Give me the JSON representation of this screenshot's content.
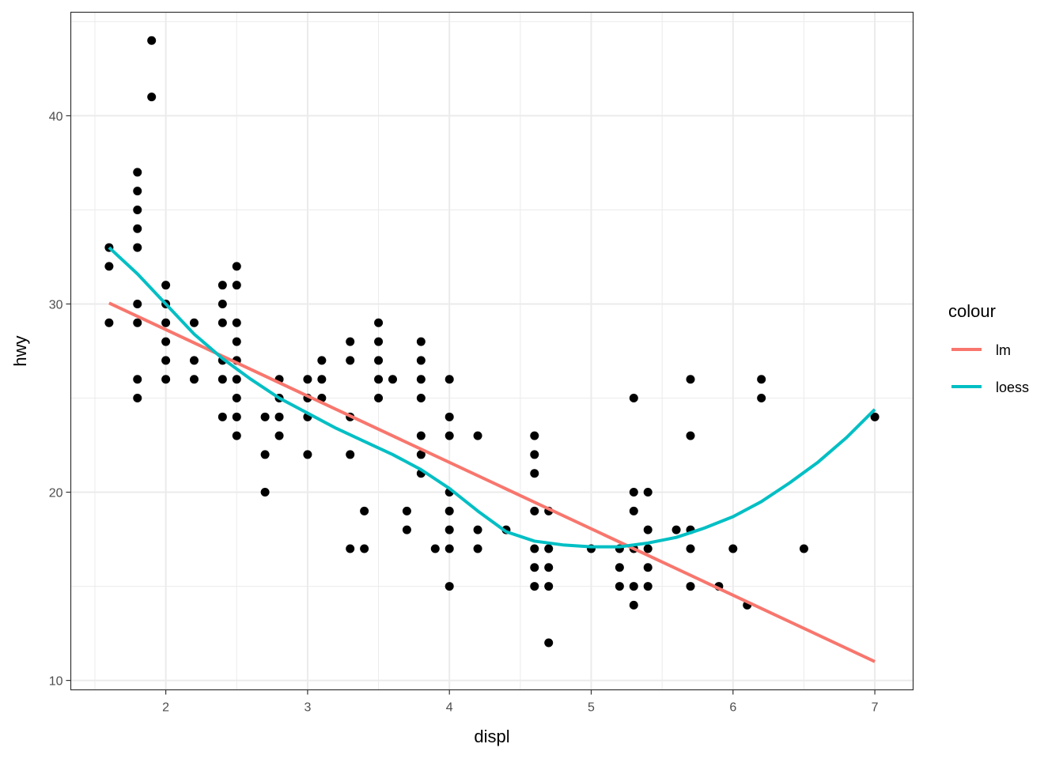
{
  "chart_data": {
    "type": "scatter",
    "xlabel": "displ",
    "ylabel": "hwy",
    "xlim": [
      1.33,
      7.27
    ],
    "ylim": [
      9.5,
      45.5
    ],
    "x_ticks": [
      2,
      3,
      4,
      5,
      6,
      7
    ],
    "y_ticks": [
      10,
      20,
      30,
      40
    ],
    "x_tick_labels": [
      "2",
      "3",
      "4",
      "5",
      "6",
      "7"
    ],
    "y_tick_labels": [
      "10",
      "20",
      "30",
      "40"
    ],
    "grid": true,
    "legend": {
      "title": "colour",
      "placement": "right"
    },
    "points": [
      [
        1.6,
        33
      ],
      [
        1.6,
        32
      ],
      [
        1.6,
        29
      ],
      [
        1.8,
        37
      ],
      [
        1.8,
        36
      ],
      [
        1.8,
        35
      ],
      [
        1.8,
        34
      ],
      [
        1.8,
        33
      ],
      [
        1.8,
        30
      ],
      [
        1.8,
        29
      ],
      [
        1.8,
        26
      ],
      [
        1.8,
        25
      ],
      [
        1.9,
        44
      ],
      [
        1.9,
        41
      ],
      [
        2.0,
        31
      ],
      [
        2.0,
        30
      ],
      [
        2.0,
        29
      ],
      [
        2.0,
        28
      ],
      [
        2.0,
        27
      ],
      [
        2.0,
        26
      ],
      [
        2.2,
        29
      ],
      [
        2.2,
        27
      ],
      [
        2.2,
        26
      ],
      [
        2.4,
        31
      ],
      [
        2.4,
        30
      ],
      [
        2.4,
        29
      ],
      [
        2.4,
        27
      ],
      [
        2.4,
        26
      ],
      [
        2.4,
        24
      ],
      [
        2.5,
        32
      ],
      [
        2.5,
        31
      ],
      [
        2.5,
        29
      ],
      [
        2.5,
        28
      ],
      [
        2.5,
        27
      ],
      [
        2.5,
        26
      ],
      [
        2.5,
        25
      ],
      [
        2.5,
        24
      ],
      [
        2.5,
        23
      ],
      [
        2.7,
        24
      ],
      [
        2.7,
        22
      ],
      [
        2.7,
        20
      ],
      [
        2.8,
        26
      ],
      [
        2.8,
        25
      ],
      [
        2.8,
        24
      ],
      [
        2.8,
        23
      ],
      [
        3.0,
        26
      ],
      [
        3.0,
        25
      ],
      [
        3.0,
        24
      ],
      [
        3.0,
        22
      ],
      [
        3.1,
        27
      ],
      [
        3.1,
        26
      ],
      [
        3.1,
        25
      ],
      [
        3.3,
        28
      ],
      [
        3.3,
        27
      ],
      [
        3.3,
        24
      ],
      [
        3.3,
        22
      ],
      [
        3.3,
        17
      ],
      [
        3.4,
        19
      ],
      [
        3.4,
        17
      ],
      [
        3.5,
        29
      ],
      [
        3.5,
        28
      ],
      [
        3.5,
        27
      ],
      [
        3.5,
        26
      ],
      [
        3.5,
        25
      ],
      [
        3.6,
        26
      ],
      [
        3.7,
        19
      ],
      [
        3.7,
        18
      ],
      [
        3.8,
        28
      ],
      [
        3.8,
        27
      ],
      [
        3.8,
        26
      ],
      [
        3.8,
        25
      ],
      [
        3.8,
        23
      ],
      [
        3.8,
        22
      ],
      [
        3.8,
        21
      ],
      [
        3.9,
        17
      ],
      [
        4.0,
        26
      ],
      [
        4.0,
        24
      ],
      [
        4.0,
        23
      ],
      [
        4.0,
        20
      ],
      [
        4.0,
        19
      ],
      [
        4.0,
        18
      ],
      [
        4.0,
        17
      ],
      [
        4.0,
        15
      ],
      [
        4.2,
        23
      ],
      [
        4.2,
        18
      ],
      [
        4.2,
        17
      ],
      [
        4.4,
        18
      ],
      [
        4.6,
        23
      ],
      [
        4.6,
        22
      ],
      [
        4.6,
        21
      ],
      [
        4.6,
        19
      ],
      [
        4.6,
        17
      ],
      [
        4.6,
        16
      ],
      [
        4.6,
        15
      ],
      [
        4.7,
        19
      ],
      [
        4.7,
        17
      ],
      [
        4.7,
        16
      ],
      [
        4.7,
        15
      ],
      [
        4.7,
        12
      ],
      [
        5.0,
        17
      ],
      [
        5.2,
        17
      ],
      [
        5.2,
        16
      ],
      [
        5.2,
        15
      ],
      [
        5.3,
        25
      ],
      [
        5.3,
        20
      ],
      [
        5.3,
        19
      ],
      [
        5.3,
        17
      ],
      [
        5.3,
        15
      ],
      [
        5.3,
        14
      ],
      [
        5.4,
        20
      ],
      [
        5.4,
        18
      ],
      [
        5.4,
        17
      ],
      [
        5.4,
        16
      ],
      [
        5.4,
        15
      ],
      [
        5.6,
        18
      ],
      [
        5.7,
        26
      ],
      [
        5.7,
        23
      ],
      [
        5.7,
        18
      ],
      [
        5.7,
        17
      ],
      [
        5.7,
        15
      ],
      [
        5.9,
        15
      ],
      [
        6.0,
        17
      ],
      [
        6.1,
        14
      ],
      [
        6.2,
        26
      ],
      [
        6.2,
        25
      ],
      [
        6.5,
        17
      ],
      [
        7.0,
        24
      ]
    ],
    "series": [
      {
        "name": "lm",
        "color": "#F8766D",
        "x": [
          1.6,
          7.0
        ],
        "y": [
          30.05,
          11.0
        ]
      },
      {
        "name": "loess",
        "color": "#00BFC4",
        "x": [
          1.6,
          1.8,
          2.0,
          2.2,
          2.4,
          2.6,
          2.8,
          3.0,
          3.2,
          3.4,
          3.6,
          3.8,
          4.0,
          4.2,
          4.4,
          4.6,
          4.8,
          5.0,
          5.2,
          5.4,
          5.6,
          5.8,
          6.0,
          6.2,
          6.4,
          6.6,
          6.8,
          7.0
        ],
        "y": [
          33.0,
          31.6,
          30.0,
          28.4,
          27.1,
          26.0,
          25.0,
          24.2,
          23.4,
          22.7,
          22.0,
          21.2,
          20.2,
          19.0,
          17.9,
          17.4,
          17.2,
          17.1,
          17.1,
          17.3,
          17.6,
          18.1,
          18.7,
          19.5,
          20.5,
          21.6,
          22.9,
          24.4
        ]
      }
    ]
  }
}
